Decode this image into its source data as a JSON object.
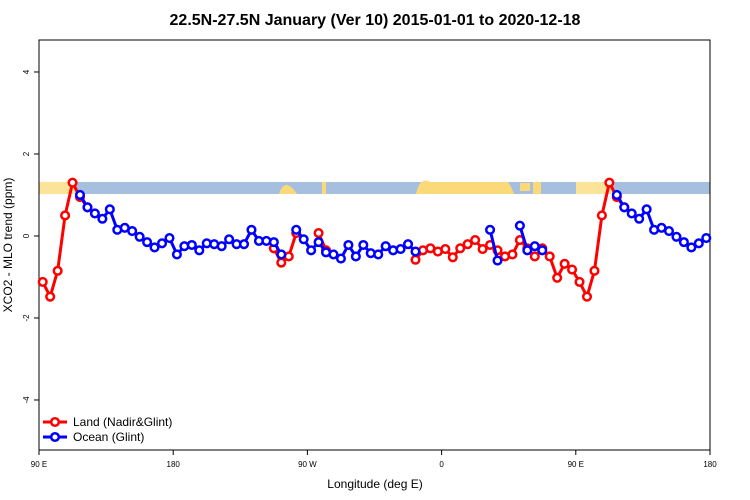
{
  "chart_data": {
    "type": "line",
    "title": "22.5N-27.5N January (Ver 10)   2015-01-01 to 2020-12-18",
    "x_label": "Longitude (deg E)",
    "y_label": "XCO2 - MLO trend (ppm)",
    "x": [
      92.5,
      97.5,
      102.5,
      107.5,
      112.5,
      117.5,
      122.5,
      127.5,
      132.5,
      137.5,
      142.5,
      147.5,
      152.5,
      157.5,
      162.5,
      167.5,
      172.5,
      177.5,
      182.5,
      187.5,
      192.5,
      197.5,
      202.5,
      207.5,
      212.5,
      217.5,
      222.5,
      227.5,
      232.5,
      237.5,
      242.5,
      247.5,
      252.5,
      257.5,
      262.5,
      267.5,
      272.5,
      277.5,
      282.5,
      287.5,
      292.5,
      297.5,
      302.5,
      307.5,
      312.5,
      317.5,
      322.5,
      327.5,
      332.5,
      337.5,
      342.5,
      347.5,
      352.5,
      357.5,
      362.5,
      367.5,
      372.5,
      377.5,
      382.5,
      387.5,
      392.5,
      397.5,
      402.5,
      407.5,
      412.5,
      417.5,
      422.5,
      427.5,
      432.5,
      437.5,
      442.5,
      447.5,
      452.5,
      457.5,
      462.5,
      467.5,
      472.5,
      477.5,
      482.5,
      487.5,
      492.5,
      497.5,
      502.5,
      507.5,
      512.5,
      517.5,
      522.5,
      527.5,
      532.5,
      537.5
    ],
    "series": [
      {
        "name": "Land (Nadir&Glint)",
        "color": "#ff0000",
        "values": [
          -1.12,
          -1.48,
          -0.85,
          0.5,
          1.3,
          0.95,
          0.7,
          null,
          null,
          null,
          null,
          null,
          null,
          null,
          null,
          null,
          null,
          null,
          null,
          null,
          null,
          null,
          null,
          null,
          null,
          null,
          null,
          null,
          null,
          null,
          null,
          -0.3,
          -0.65,
          -0.5,
          0.07,
          null,
          null,
          0.07,
          -0.35,
          null,
          null,
          null,
          null,
          null,
          null,
          null,
          null,
          null,
          null,
          null,
          -0.58,
          -0.35,
          -0.3,
          -0.38,
          -0.32,
          -0.52,
          -0.3,
          -0.2,
          -0.1,
          -0.32,
          -0.22,
          -0.35,
          -0.5,
          -0.45,
          -0.1,
          -0.3,
          -0.5,
          -0.3,
          -0.5,
          -1.02,
          -0.68,
          -0.82,
          -1.12,
          -1.48,
          -0.85,
          0.5,
          1.3,
          0.95,
          0.7,
          null,
          null,
          null,
          null,
          null,
          null,
          null,
          null,
          null,
          null,
          null
        ]
      },
      {
        "name": "Ocean (Glint)",
        "color": "#0000ff",
        "values": [
          null,
          null,
          null,
          null,
          null,
          1.0,
          0.7,
          0.55,
          0.42,
          0.65,
          0.15,
          0.2,
          0.12,
          -0.02,
          -0.15,
          -0.28,
          -0.18,
          -0.05,
          -0.45,
          -0.25,
          -0.22,
          -0.35,
          -0.18,
          -0.2,
          -0.25,
          -0.08,
          -0.2,
          -0.2,
          0.15,
          -0.12,
          -0.12,
          -0.15,
          -0.45,
          null,
          0.15,
          -0.08,
          -0.35,
          -0.15,
          -0.4,
          -0.45,
          -0.55,
          -0.22,
          -0.5,
          -0.22,
          -0.42,
          -0.45,
          -0.25,
          -0.35,
          -0.32,
          -0.2,
          -0.38,
          null,
          null,
          null,
          null,
          null,
          null,
          null,
          null,
          null,
          0.15,
          -0.6,
          null,
          null,
          0.25,
          -0.35,
          -0.25,
          -0.35,
          null,
          null,
          null,
          null,
          null,
          null,
          null,
          null,
          null,
          1.0,
          0.7,
          0.55,
          0.42,
          0.65,
          0.15,
          0.2,
          0.12,
          -0.02,
          -0.15,
          -0.28,
          -0.18,
          -0.05
        ]
      }
    ],
    "xlim": [
      90,
      540
    ],
    "xticks": [
      {
        "value": 90,
        "label": "90 E"
      },
      180,
      {
        "value": 270,
        "label": "90 W"
      },
      {
        "value": 360,
        "label": "0"
      },
      {
        "value": 450,
        "label": "90 E"
      },
      180
    ],
    "ylim": [
      -5.22,
      4.78
    ],
    "yticks": [
      -4,
      -2,
      0,
      2,
      4
    ],
    "grid": false,
    "legend": "bottom-left"
  }
}
